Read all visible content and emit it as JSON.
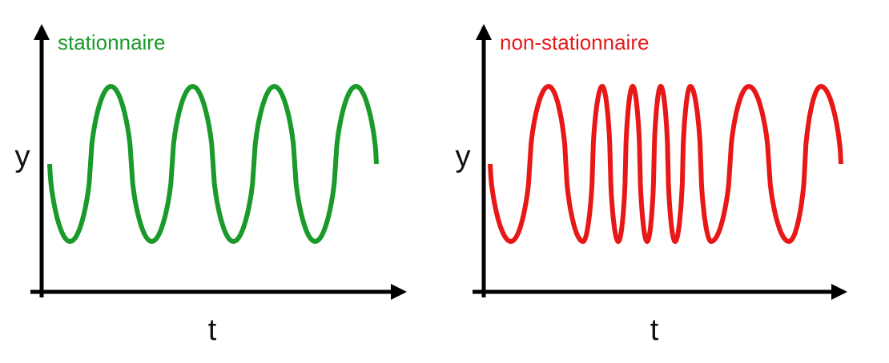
{
  "panels": [
    {
      "title": "stationnaire",
      "y_label": "y",
      "x_label": "t"
    },
    {
      "title": "non-stationnaire",
      "y_label": "y",
      "x_label": "t"
    }
  ]
}
